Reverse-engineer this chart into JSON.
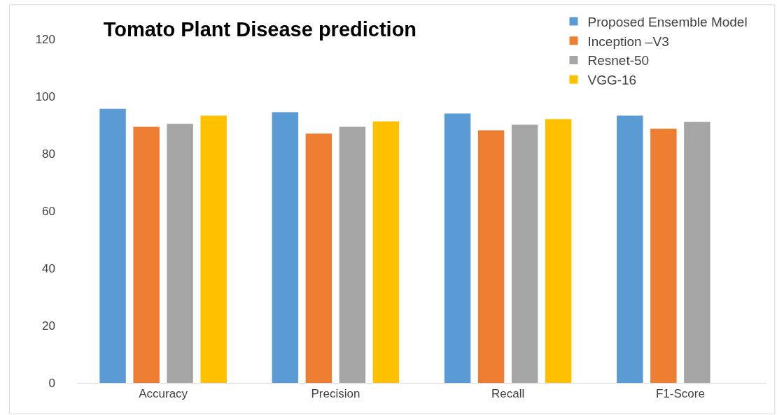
{
  "chart_data": {
    "type": "bar",
    "title": "Tomato Plant Disease prediction",
    "categories": [
      "Accuracy",
      "Precision",
      "Recall",
      "F1-Score"
    ],
    "series": [
      {
        "name": "Proposed Ensemble Model",
        "color": "#5b9bd5",
        "values": [
          95.7,
          94.5,
          94.0,
          93.3
        ]
      },
      {
        "name": "Inception –V3",
        "color": "#ed7d31",
        "values": [
          89.4,
          87.0,
          88.2,
          88.7
        ]
      },
      {
        "name": "Resnet-50",
        "color": "#a5a5a5",
        "values": [
          90.4,
          89.4,
          90.1,
          91.1
        ]
      },
      {
        "name": "VGG-16",
        "color": "#ffc000",
        "values": [
          93.3,
          91.3,
          92.1,
          null
        ]
      }
    ],
    "ylim": [
      0,
      120
    ],
    "yticks": [
      0,
      20,
      40,
      60,
      80,
      100,
      120
    ],
    "grid": false,
    "legend": "top right"
  }
}
